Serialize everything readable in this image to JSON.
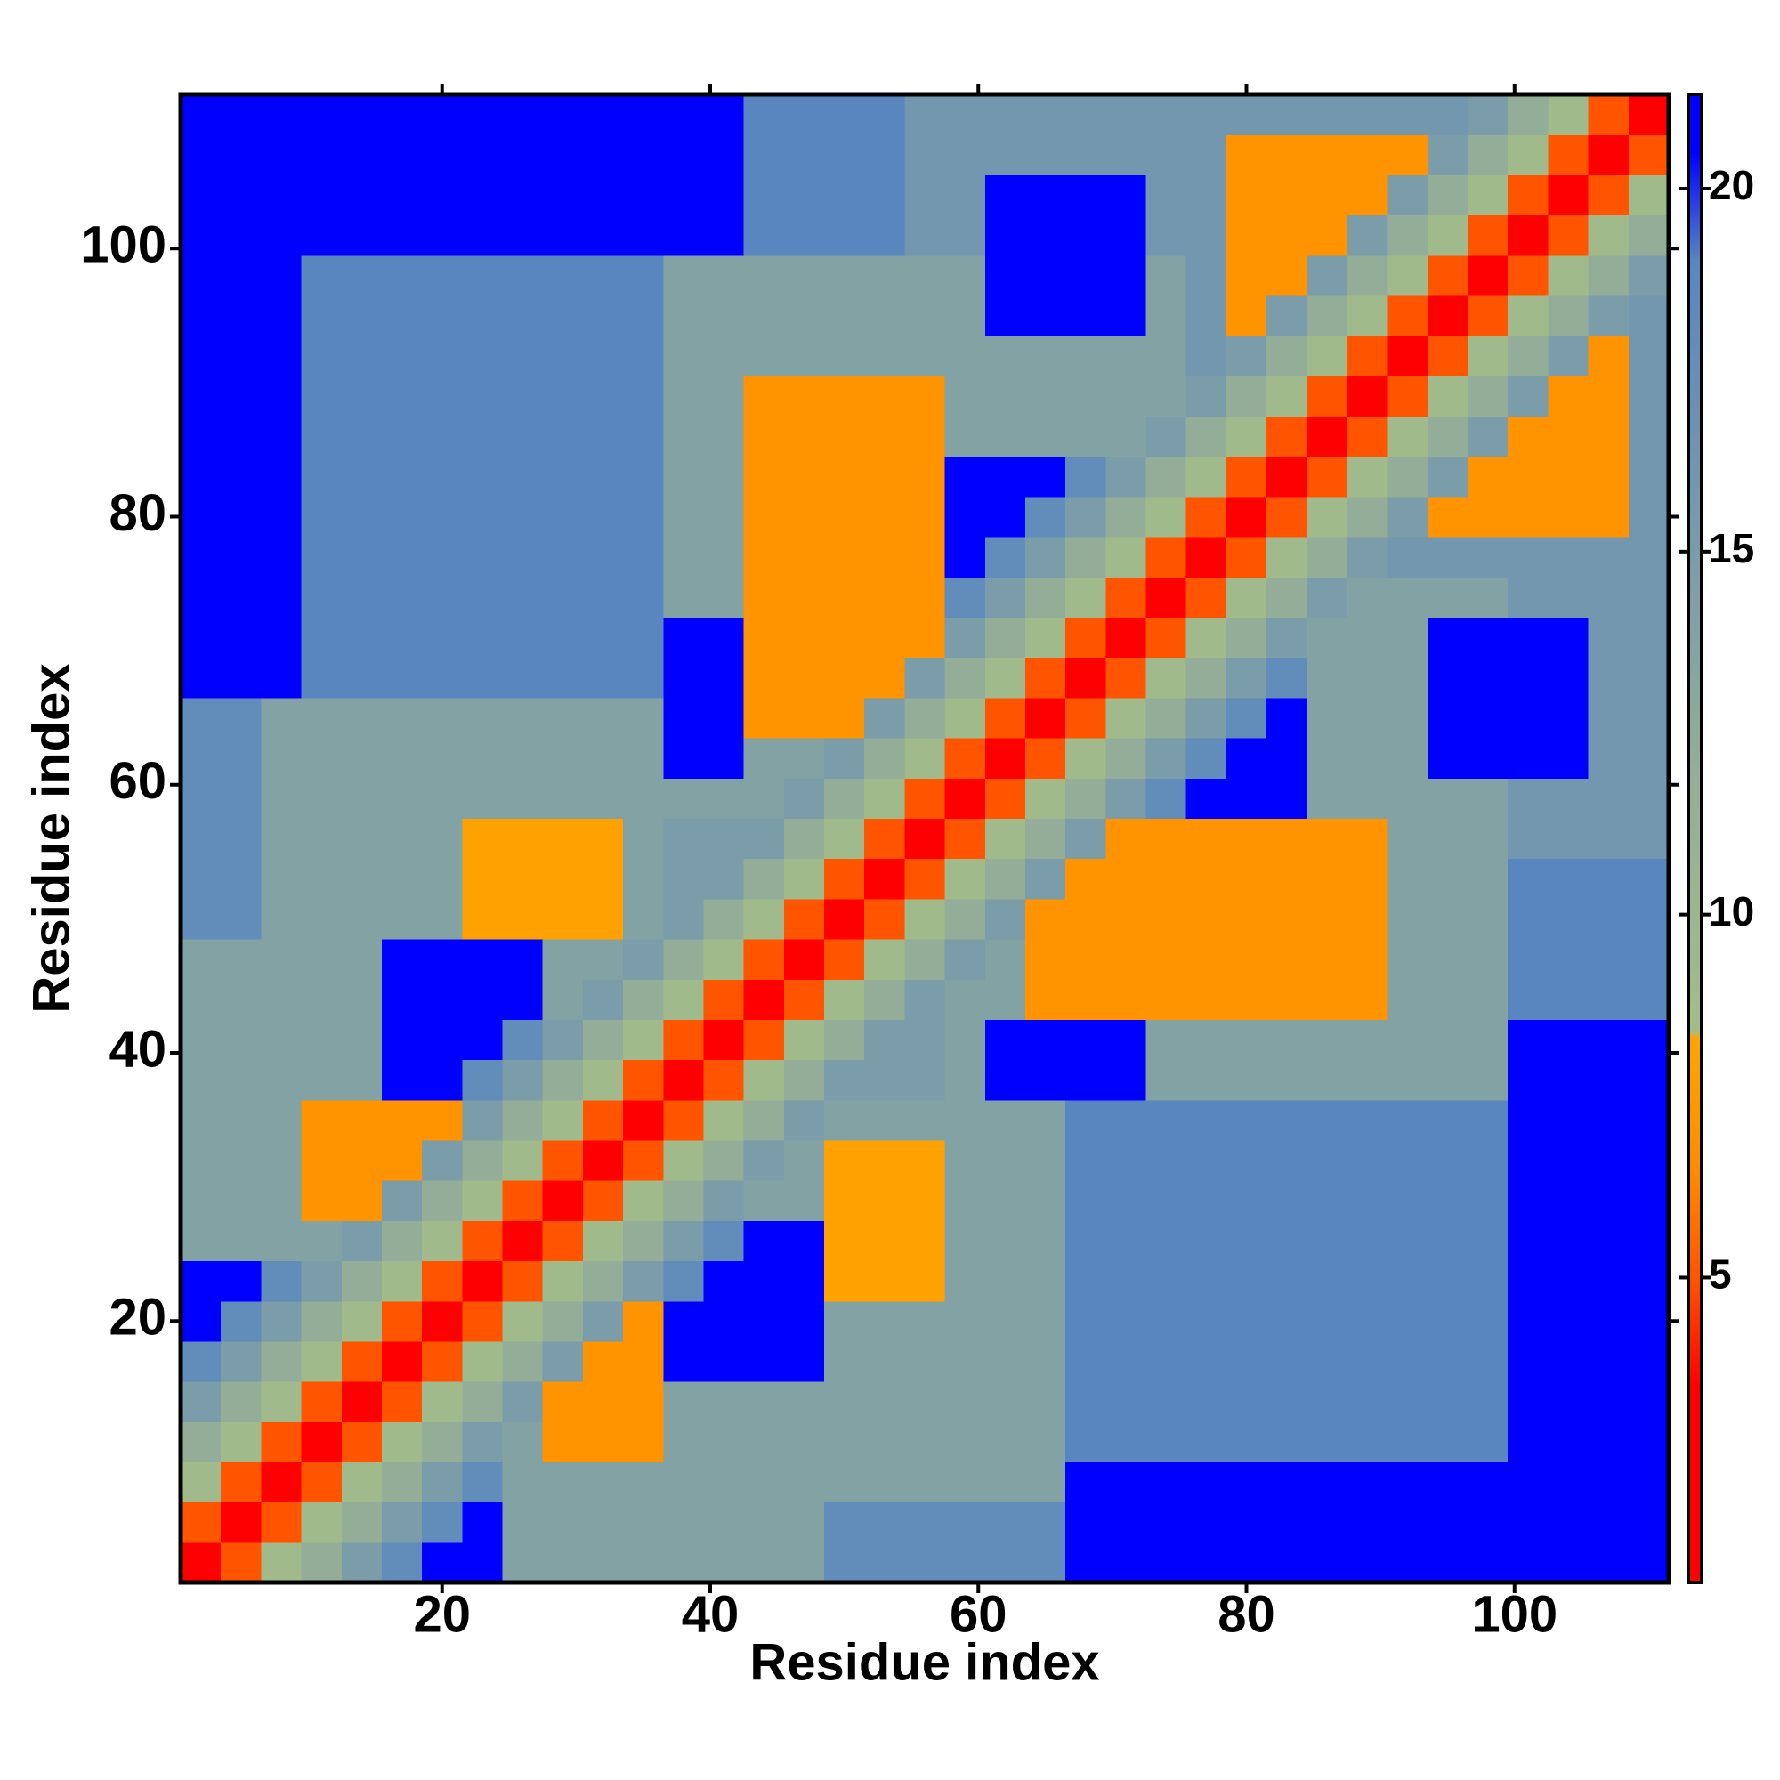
{
  "chart_data": {
    "type": "heatmap",
    "x_label": "Residue index",
    "y_label": "Residue index",
    "xbins": [
      0.5,
      3.5,
      6.5,
      9.5,
      12.5,
      15.5,
      18.5,
      21.5,
      24.5,
      27.5,
      30.5,
      33.5,
      36.5,
      39.5,
      42.5,
      45.5,
      48.5,
      51.5,
      54.5,
      57.5,
      60.5,
      63.5,
      66.5,
      69.5,
      72.5,
      75.5,
      78.5,
      81.5,
      84.5,
      87.5,
      90.5,
      93.5,
      96.5,
      99.5,
      102.5,
      105.5,
      108.5,
      111.5
    ],
    "ybins": [
      0.5,
      3.5,
      6.5,
      9.5,
      12.5,
      15.5,
      18.5,
      21.5,
      24.5,
      27.5,
      30.5,
      33.5,
      36.5,
      39.5,
      42.5,
      45.5,
      48.5,
      51.5,
      54.5,
      57.5,
      60.5,
      63.5,
      66.5,
      69.5,
      72.5,
      75.5,
      78.5,
      81.5,
      84.5,
      87.5,
      90.5,
      93.5,
      96.5,
      99.5,
      102.5,
      105.5,
      108.5,
      111.5
    ],
    "xlim": [
      0.5,
      111.5
    ],
    "ylim": [
      0.5,
      111.5
    ],
    "xticks": [
      20,
      40,
      60,
      80,
      100
    ],
    "yticks": [
      20,
      40,
      60,
      80,
      100
    ],
    "zlim": [
      0.8,
      21.3
    ],
    "zticks": [
      5,
      10,
      15,
      20
    ],
    "colorscale": [
      [
        0.8,
        "#ff0000"
      ],
      [
        3.5,
        "#ff0000"
      ],
      [
        5,
        "#ff5500"
      ],
      [
        6.5,
        "#ff8c00"
      ],
      [
        8.3,
        "#ffa500"
      ],
      [
        8.4,
        "#a3bd8a"
      ],
      [
        12,
        "#93ad98"
      ],
      [
        19,
        "#5a86c0"
      ],
      [
        20.5,
        "#0000ff"
      ],
      [
        21.3,
        "#0000ff"
      ]
    ],
    "z": [
      [
        2,
        5,
        9,
        12,
        15,
        18,
        21,
        21,
        14,
        14,
        14,
        14,
        14,
        14,
        14,
        14,
        18,
        18,
        18,
        18,
        18,
        18,
        21,
        21,
        21,
        21,
        21,
        21,
        21,
        21,
        21,
        21,
        21,
        21,
        21,
        21,
        21
      ],
      [
        5,
        2,
        5,
        9,
        12,
        15,
        18,
        21,
        14,
        14,
        14,
        14,
        14,
        14,
        14,
        14,
        18,
        18,
        18,
        18,
        18,
        18,
        21,
        21,
        21,
        21,
        21,
        21,
        21,
        21,
        21,
        21,
        21,
        21,
        21,
        21,
        21
      ],
      [
        9,
        5,
        2,
        5,
        9,
        12,
        15,
        18,
        14,
        14,
        14,
        14,
        14,
        14,
        14,
        14,
        14,
        14,
        14,
        14,
        14,
        14,
        21,
        21,
        21,
        21,
        21,
        21,
        21,
        21,
        21,
        21,
        21,
        21,
        21,
        21,
        21
      ],
      [
        12,
        9,
        5,
        2,
        5,
        9,
        12,
        15,
        14,
        7,
        7,
        7,
        14,
        14,
        14,
        14,
        14,
        14,
        14,
        14,
        14,
        14,
        19,
        19,
        19,
        19,
        19,
        19,
        19,
        19,
        19,
        19,
        19,
        21,
        21,
        21,
        21
      ],
      [
        15,
        12,
        9,
        5,
        2,
        5,
        9,
        12,
        15,
        7,
        7,
        7,
        14,
        14,
        14,
        14,
        14,
        14,
        14,
        14,
        14,
        14,
        19,
        19,
        19,
        19,
        19,
        19,
        19,
        19,
        19,
        19,
        19,
        21,
        21,
        21,
        21
      ],
      [
        18,
        15,
        12,
        9,
        5,
        2,
        5,
        9,
        12,
        15,
        7,
        7,
        21,
        21,
        21,
        21,
        14,
        14,
        14,
        14,
        14,
        14,
        19,
        19,
        19,
        19,
        19,
        19,
        19,
        19,
        19,
        19,
        19,
        21,
        21,
        21,
        21
      ],
      [
        21,
        18,
        15,
        12,
        9,
        5,
        2,
        5,
        9,
        12,
        15,
        7,
        21,
        21,
        21,
        21,
        14,
        14,
        14,
        14,
        14,
        14,
        19,
        19,
        19,
        19,
        19,
        19,
        19,
        19,
        19,
        19,
        19,
        21,
        21,
        21,
        21
      ],
      [
        21,
        21,
        18,
        15,
        12,
        9,
        5,
        2,
        5,
        9,
        12,
        15,
        18,
        21,
        21,
        21,
        8,
        8,
        8,
        14,
        14,
        14,
        19,
        19,
        19,
        19,
        19,
        19,
        19,
        19,
        19,
        19,
        19,
        21,
        21,
        21,
        21
      ],
      [
        14,
        14,
        14,
        14,
        15,
        12,
        9,
        5,
        2,
        5,
        9,
        12,
        15,
        18,
        21,
        21,
        8,
        8,
        8,
        14,
        14,
        14,
        19,
        19,
        19,
        19,
        19,
        19,
        19,
        19,
        19,
        19,
        19,
        21,
        21,
        21,
        21
      ],
      [
        14,
        14,
        14,
        7,
        7,
        15,
        12,
        9,
        5,
        2,
        5,
        9,
        12,
        15,
        14,
        14,
        8,
        8,
        8,
        14,
        14,
        14,
        19,
        19,
        19,
        19,
        19,
        19,
        19,
        19,
        19,
        19,
        19,
        21,
        21,
        21,
        21
      ],
      [
        14,
        14,
        14,
        7,
        7,
        7,
        15,
        12,
        9,
        5,
        2,
        5,
        9,
        12,
        15,
        14,
        8,
        8,
        8,
        14,
        14,
        14,
        19,
        19,
        19,
        19,
        19,
        19,
        19,
        19,
        19,
        19,
        19,
        21,
        21,
        21,
        21
      ],
      [
        14,
        14,
        14,
        7,
        7,
        7,
        7,
        15,
        12,
        9,
        5,
        2,
        5,
        9,
        12,
        15,
        14,
        14,
        14,
        14,
        14,
        14,
        19,
        19,
        19,
        19,
        19,
        19,
        19,
        19,
        19,
        19,
        19,
        21,
        21,
        21,
        21
      ],
      [
        14,
        14,
        14,
        14,
        14,
        21,
        21,
        18,
        15,
        12,
        9,
        5,
        2,
        5,
        9,
        12,
        15,
        15,
        15,
        14,
        21,
        21,
        21,
        21,
        14,
        14,
        14,
        14,
        14,
        14,
        14,
        14,
        14,
        21,
        21,
        21,
        21
      ],
      [
        14,
        14,
        14,
        14,
        14,
        21,
        21,
        21,
        18,
        15,
        12,
        9,
        5,
        2,
        5,
        9,
        12,
        15,
        15,
        14,
        21,
        21,
        21,
        21,
        14,
        14,
        14,
        14,
        14,
        14,
        14,
        14,
        14,
        21,
        21,
        21,
        21
      ],
      [
        14,
        14,
        14,
        14,
        14,
        21,
        21,
        21,
        21,
        14,
        15,
        12,
        9,
        5,
        2,
        5,
        9,
        12,
        15,
        14,
        14,
        7,
        7,
        7,
        7,
        7,
        7,
        7,
        7,
        7,
        14,
        14,
        14,
        19,
        19,
        19,
        19
      ],
      [
        14,
        14,
        14,
        14,
        14,
        21,
        21,
        21,
        21,
        14,
        14,
        15,
        12,
        9,
        5,
        2,
        5,
        9,
        12,
        15,
        14,
        7,
        7,
        7,
        7,
        7,
        7,
        7,
        7,
        7,
        14,
        14,
        14,
        19,
        19,
        19,
        19
      ],
      [
        18,
        18,
        14,
        14,
        14,
        14,
        14,
        8,
        8,
        8,
        8,
        14,
        15,
        12,
        9,
        5,
        2,
        5,
        9,
        12,
        15,
        7,
        7,
        7,
        7,
        7,
        7,
        7,
        7,
        7,
        14,
        14,
        14,
        19,
        19,
        19,
        19
      ],
      [
        18,
        18,
        14,
        14,
        14,
        14,
        14,
        8,
        8,
        8,
        8,
        14,
        15,
        15,
        12,
        9,
        5,
        2,
        5,
        9,
        12,
        15,
        7,
        7,
        7,
        7,
        7,
        7,
        7,
        7,
        14,
        14,
        14,
        19,
        19,
        19,
        19
      ],
      [
        18,
        18,
        14,
        14,
        14,
        14,
        14,
        8,
        8,
        8,
        8,
        14,
        15,
        15,
        15,
        12,
        9,
        5,
        2,
        5,
        9,
        12,
        15,
        7,
        7,
        7,
        7,
        7,
        7,
        7,
        14,
        14,
        14,
        16,
        16,
        16,
        16
      ],
      [
        18,
        18,
        14,
        14,
        14,
        14,
        14,
        14,
        14,
        14,
        14,
        14,
        14,
        14,
        14,
        15,
        12,
        9,
        5,
        2,
        5,
        9,
        12,
        15,
        18,
        21,
        21,
        21,
        14,
        14,
        14,
        14,
        14,
        16,
        16,
        16,
        16
      ],
      [
        18,
        18,
        14,
        14,
        14,
        14,
        14,
        14,
        14,
        14,
        14,
        14,
        21,
        21,
        14,
        14,
        15,
        12,
        9,
        5,
        2,
        5,
        9,
        12,
        15,
        18,
        21,
        21,
        14,
        14,
        14,
        21,
        21,
        21,
        21,
        16,
        16
      ],
      [
        18,
        18,
        14,
        14,
        14,
        14,
        14,
        14,
        14,
        14,
        14,
        14,
        21,
        21,
        7,
        7,
        7,
        15,
        12,
        9,
        5,
        2,
        5,
        9,
        12,
        15,
        18,
        21,
        14,
        14,
        14,
        21,
        21,
        21,
        21,
        16,
        16
      ],
      [
        21,
        21,
        21,
        19,
        19,
        19,
        19,
        19,
        19,
        19,
        19,
        19,
        21,
        21,
        7,
        7,
        7,
        7,
        15,
        12,
        9,
        5,
        2,
        5,
        9,
        12,
        15,
        18,
        14,
        14,
        14,
        21,
        21,
        21,
        21,
        16,
        16
      ],
      [
        21,
        21,
        21,
        19,
        19,
        19,
        19,
        19,
        19,
        19,
        19,
        19,
        21,
        21,
        7,
        7,
        7,
        7,
        7,
        15,
        12,
        9,
        5,
        2,
        5,
        9,
        12,
        15,
        14,
        14,
        14,
        21,
        21,
        21,
        21,
        16,
        16
      ],
      [
        21,
        21,
        21,
        19,
        19,
        19,
        19,
        19,
        19,
        19,
        19,
        19,
        14,
        14,
        7,
        7,
        7,
        7,
        7,
        18,
        15,
        12,
        9,
        5,
        2,
        5,
        9,
        12,
        15,
        14,
        14,
        14,
        14,
        16,
        16,
        16,
        16
      ],
      [
        21,
        21,
        21,
        19,
        19,
        19,
        19,
        19,
        19,
        19,
        19,
        19,
        14,
        14,
        7,
        7,
        7,
        7,
        7,
        21,
        18,
        15,
        12,
        9,
        5,
        2,
        5,
        9,
        12,
        15,
        16,
        16,
        16,
        16,
        16,
        16,
        16
      ],
      [
        21,
        21,
        21,
        19,
        19,
        19,
        19,
        19,
        19,
        19,
        19,
        19,
        14,
        14,
        7,
        7,
        7,
        7,
        7,
        21,
        21,
        18,
        15,
        12,
        9,
        5,
        2,
        5,
        9,
        12,
        15,
        7,
        7,
        7,
        7,
        7,
        16
      ],
      [
        21,
        21,
        21,
        19,
        19,
        19,
        19,
        19,
        19,
        19,
        19,
        19,
        14,
        14,
        7,
        7,
        7,
        7,
        7,
        21,
        21,
        21,
        18,
        15,
        12,
        9,
        5,
        2,
        5,
        9,
        12,
        15,
        7,
        7,
        7,
        7,
        16
      ],
      [
        21,
        21,
        21,
        19,
        19,
        19,
        19,
        19,
        19,
        19,
        19,
        19,
        14,
        14,
        7,
        7,
        7,
        7,
        7,
        14,
        14,
        14,
        14,
        14,
        15,
        12,
        9,
        5,
        2,
        5,
        9,
        12,
        15,
        7,
        7,
        7,
        16
      ],
      [
        21,
        21,
        21,
        19,
        19,
        19,
        19,
        19,
        19,
        19,
        19,
        19,
        14,
        14,
        7,
        7,
        7,
        7,
        7,
        14,
        14,
        14,
        14,
        14,
        14,
        15,
        12,
        9,
        5,
        2,
        5,
        9,
        12,
        15,
        7,
        7,
        16
      ],
      [
        21,
        21,
        21,
        19,
        19,
        19,
        19,
        19,
        19,
        19,
        19,
        19,
        14,
        14,
        14,
        14,
        14,
        14,
        14,
        14,
        14,
        14,
        14,
        14,
        14,
        16,
        15,
        12,
        9,
        5,
        2,
        5,
        9,
        12,
        15,
        7,
        16
      ],
      [
        21,
        21,
        21,
        19,
        19,
        19,
        19,
        19,
        19,
        19,
        19,
        19,
        14,
        14,
        14,
        14,
        14,
        14,
        14,
        14,
        21,
        21,
        21,
        21,
        14,
        16,
        7,
        15,
        12,
        9,
        5,
        2,
        5,
        9,
        12,
        15,
        16
      ],
      [
        21,
        21,
        21,
        19,
        19,
        19,
        19,
        19,
        19,
        19,
        19,
        19,
        14,
        14,
        14,
        14,
        14,
        14,
        14,
        14,
        21,
        21,
        21,
        21,
        14,
        16,
        7,
        7,
        15,
        12,
        9,
        5,
        2,
        5,
        9,
        12,
        15
      ],
      [
        21,
        21,
        21,
        21,
        21,
        21,
        21,
        21,
        21,
        21,
        21,
        21,
        21,
        21,
        19,
        19,
        19,
        19,
        16,
        16,
        21,
        21,
        21,
        21,
        16,
        16,
        7,
        7,
        7,
        15,
        12,
        9,
        5,
        2,
        5,
        9,
        12
      ],
      [
        21,
        21,
        21,
        21,
        21,
        21,
        21,
        21,
        21,
        21,
        21,
        21,
        21,
        21,
        19,
        19,
        19,
        19,
        16,
        16,
        21,
        21,
        21,
        21,
        16,
        16,
        7,
        7,
        7,
        7,
        15,
        12,
        9,
        5,
        2,
        5,
        9
      ],
      [
        21,
        21,
        21,
        21,
        21,
        21,
        21,
        21,
        21,
        21,
        21,
        21,
        21,
        21,
        19,
        19,
        19,
        19,
        16,
        16,
        16,
        16,
        16,
        16,
        16,
        16,
        7,
        7,
        7,
        7,
        7,
        15,
        12,
        9,
        5,
        2,
        5
      ],
      [
        21,
        21,
        21,
        21,
        21,
        21,
        21,
        21,
        21,
        21,
        21,
        21,
        21,
        21,
        19,
        19,
        19,
        19,
        16,
        16,
        16,
        16,
        16,
        16,
        16,
        16,
        16,
        16,
        16,
        16,
        16,
        16,
        15,
        12,
        9,
        5,
        2
      ]
    ]
  }
}
